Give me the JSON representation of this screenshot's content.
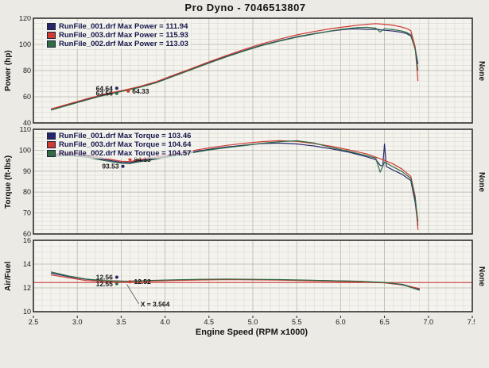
{
  "title": "Pro Dyno - 7046513807",
  "xlabel": "Engine Speed (RPM x1000)",
  "right_label": "None",
  "x_ticks": [
    "2.5",
    "3.0",
    "3.5",
    "4.0",
    "4.5",
    "5.0",
    "5.5",
    "6.0",
    "6.5",
    "7.0",
    "7.5"
  ],
  "colors": {
    "run001": "#26276b",
    "run003": "#cf3a31",
    "run002": "#2f6b45",
    "afr_target": "#cc3333"
  },
  "chart_data": [
    {
      "type": "line",
      "ylabel": "Power (hp)",
      "ylim": [
        40,
        120
      ],
      "yticks": [
        40,
        60,
        80,
        100,
        120
      ],
      "y_minor": 4,
      "xlim": [
        2.5,
        7.5
      ],
      "x_minor": 0.1,
      "x_major": 0.5,
      "legend": [
        {
          "label": "RunFile_001.drf Max Power = 111.94",
          "color": "#26276b"
        },
        {
          "label": "RunFile_003.drf Max Power = 115.93",
          "color": "#cf3a31"
        },
        {
          "label": "RunFile_002.drf Max Power = 113.03",
          "color": "#2f6b45"
        }
      ],
      "series": [
        {
          "name": "RunFile_001.drf",
          "color": "#26276b",
          "points": [
            [
              2.7,
              50.2
            ],
            [
              2.9,
              54.0
            ],
            [
              3.1,
              57.8
            ],
            [
              3.3,
              61.4
            ],
            [
              3.5,
              64.3
            ],
            [
              3.7,
              67.2
            ],
            [
              3.9,
              71.0
            ],
            [
              4.1,
              76.0
            ],
            [
              4.3,
              81.0
            ],
            [
              4.5,
              86.0
            ],
            [
              4.7,
              90.8
            ],
            [
              4.9,
              95.3
            ],
            [
              5.1,
              99.4
            ],
            [
              5.3,
              102.8
            ],
            [
              5.5,
              105.8
            ],
            [
              5.7,
              108.3
            ],
            [
              5.9,
              110.3
            ],
            [
              6.0,
              111.1
            ],
            [
              6.1,
              111.7
            ],
            [
              6.2,
              111.9
            ],
            [
              6.3,
              111.4
            ],
            [
              6.4,
              111.6
            ],
            [
              6.5,
              110.8
            ],
            [
              6.6,
              110.2
            ],
            [
              6.7,
              109.2
            ],
            [
              6.75,
              108.3
            ],
            [
              6.8,
              106.5
            ],
            [
              6.85,
              97.0
            ],
            [
              6.88,
              85.0
            ]
          ]
        },
        {
          "name": "RunFile_003.drf",
          "color": "#cf3a31",
          "points": [
            [
              2.7,
              50.6
            ],
            [
              2.9,
              54.5
            ],
            [
              3.1,
              58.3
            ],
            [
              3.3,
              61.9
            ],
            [
              3.5,
              64.6
            ],
            [
              3.7,
              67.7
            ],
            [
              3.9,
              71.6
            ],
            [
              4.1,
              76.6
            ],
            [
              4.3,
              81.6
            ],
            [
              4.5,
              86.7
            ],
            [
              4.7,
              91.6
            ],
            [
              4.9,
              96.2
            ],
            [
              5.1,
              100.4
            ],
            [
              5.3,
              104.0
            ],
            [
              5.5,
              107.3
            ],
            [
              5.7,
              109.9
            ],
            [
              5.9,
              112.1
            ],
            [
              6.0,
              113.0
            ],
            [
              6.1,
              113.9
            ],
            [
              6.2,
              114.7
            ],
            [
              6.3,
              115.4
            ],
            [
              6.4,
              115.9
            ],
            [
              6.5,
              115.4
            ],
            [
              6.6,
              114.6
            ],
            [
              6.7,
              113.2
            ],
            [
              6.75,
              112.2
            ],
            [
              6.8,
              110.5
            ],
            [
              6.85,
              98.0
            ],
            [
              6.88,
              72.0
            ]
          ]
        },
        {
          "name": "RunFile_002.drf",
          "color": "#2f6b45",
          "points": [
            [
              2.7,
              49.8
            ],
            [
              2.9,
              53.6
            ],
            [
              3.1,
              57.4
            ],
            [
              3.3,
              61.0
            ],
            [
              3.5,
              64.0
            ],
            [
              3.7,
              66.9
            ],
            [
              3.9,
              70.7
            ],
            [
              4.1,
              75.7
            ],
            [
              4.3,
              80.7
            ],
            [
              4.5,
              85.7
            ],
            [
              4.7,
              90.5
            ],
            [
              4.9,
              95.0
            ],
            [
              5.1,
              99.1
            ],
            [
              5.3,
              102.5
            ],
            [
              5.5,
              105.5
            ],
            [
              5.7,
              108.0
            ],
            [
              5.9,
              110.4
            ],
            [
              6.0,
              111.4
            ],
            [
              6.1,
              112.2
            ],
            [
              6.2,
              112.9
            ],
            [
              6.3,
              113.0
            ],
            [
              6.4,
              112.4
            ],
            [
              6.45,
              109.5
            ],
            [
              6.5,
              112.0
            ],
            [
              6.6,
              111.3
            ],
            [
              6.7,
              110.2
            ],
            [
              6.75,
              109.2
            ],
            [
              6.8,
              107.5
            ],
            [
              6.85,
              96.0
            ],
            [
              6.88,
              80.0
            ]
          ]
        }
      ],
      "annotations": [
        {
          "text": "64.64",
          "x": 3.45,
          "y": 66.5,
          "anchor": "end",
          "dot": "#26276b"
        },
        {
          "text": "63.56",
          "x": 3.45,
          "y": 62.6,
          "anchor": "end",
          "dot": "#2f6b45"
        },
        {
          "text": "64.33",
          "x": 3.58,
          "y": 64.3,
          "anchor": "start",
          "dot": "#cf3a31"
        }
      ]
    },
    {
      "type": "line",
      "ylabel": "Torque (ft-lbs)",
      "ylim": [
        60,
        110
      ],
      "yticks": [
        60,
        70,
        80,
        90,
        100,
        110
      ],
      "y_minor": 2,
      "xlim": [
        2.5,
        7.5
      ],
      "x_minor": 0.1,
      "x_major": 0.5,
      "legend": [
        {
          "label": "RunFile_001.drf Max Torque = 103.46",
          "color": "#26276b"
        },
        {
          "label": "RunFile_003.drf Max Torque = 104.64",
          "color": "#cf3a31"
        },
        {
          "label": "RunFile_002.drf Max Torque = 104.57",
          "color": "#2f6b45"
        }
      ],
      "series": [
        {
          "name": "RunFile_001.drf",
          "color": "#26276b",
          "points": [
            [
              2.7,
              97.5
            ],
            [
              2.9,
              97.9
            ],
            [
              3.1,
              97.2
            ],
            [
              3.3,
              95.6
            ],
            [
              3.5,
              94.2
            ],
            [
              3.6,
              94.1
            ],
            [
              3.7,
              94.9
            ],
            [
              3.9,
              96.2
            ],
            [
              4.1,
              97.6
            ],
            [
              4.3,
              99.1
            ],
            [
              4.5,
              100.4
            ],
            [
              4.7,
              101.5
            ],
            [
              4.9,
              102.4
            ],
            [
              5.1,
              103.2
            ],
            [
              5.3,
              103.4
            ],
            [
              5.5,
              103.0
            ],
            [
              5.7,
              102.0
            ],
            [
              5.9,
              100.6
            ],
            [
              6.1,
              99.0
            ],
            [
              6.3,
              96.8
            ],
            [
              6.4,
              95.5
            ],
            [
              6.45,
              92.8
            ],
            [
              6.48,
              92.5
            ],
            [
              6.5,
              103.0
            ],
            [
              6.52,
              92.2
            ],
            [
              6.6,
              90.5
            ],
            [
              6.7,
              88.5
            ],
            [
              6.8,
              85.5
            ],
            [
              6.85,
              75.0
            ],
            [
              6.88,
              64.0
            ]
          ]
        },
        {
          "name": "RunFile_003.drf",
          "color": "#cf3a31",
          "points": [
            [
              2.7,
              98.2
            ],
            [
              2.9,
              98.6
            ],
            [
              3.1,
              97.8
            ],
            [
              3.3,
              96.2
            ],
            [
              3.5,
              94.7
            ],
            [
              3.6,
              94.6
            ],
            [
              3.7,
              95.4
            ],
            [
              3.9,
              96.8
            ],
            [
              4.1,
              98.2
            ],
            [
              4.3,
              99.7
            ],
            [
              4.5,
              101.1
            ],
            [
              4.7,
              102.3
            ],
            [
              4.9,
              103.3
            ],
            [
              5.1,
              104.1
            ],
            [
              5.3,
              104.6
            ],
            [
              5.5,
              104.2
            ],
            [
              5.7,
              103.2
            ],
            [
              5.9,
              101.8
            ],
            [
              6.1,
              100.1
            ],
            [
              6.3,
              98.2
            ],
            [
              6.5,
              95.2
            ],
            [
              6.6,
              93.4
            ],
            [
              6.7,
              91.0
            ],
            [
              6.8,
              87.5
            ],
            [
              6.85,
              78.0
            ],
            [
              6.88,
              62.0
            ]
          ]
        },
        {
          "name": "RunFile_002.drf",
          "color": "#2f6b45",
          "points": [
            [
              2.7,
              97.0
            ],
            [
              2.9,
              97.4
            ],
            [
              3.1,
              96.7
            ],
            [
              3.3,
              95.1
            ],
            [
              3.5,
              93.8
            ],
            [
              3.6,
              93.6
            ],
            [
              3.7,
              94.4
            ],
            [
              3.9,
              95.8
            ],
            [
              4.1,
              97.2
            ],
            [
              4.3,
              98.7
            ],
            [
              4.5,
              100.1
            ],
            [
              4.7,
              101.2
            ],
            [
              4.9,
              102.2
            ],
            [
              5.1,
              103.3
            ],
            [
              5.3,
              104.1
            ],
            [
              5.5,
              104.5
            ],
            [
              5.7,
              103.4
            ],
            [
              5.9,
              101.2
            ],
            [
              6.1,
              99.4
            ],
            [
              6.3,
              97.4
            ],
            [
              6.4,
              96.2
            ],
            [
              6.45,
              89.5
            ],
            [
              6.5,
              94.3
            ],
            [
              6.6,
              92.0
            ],
            [
              6.7,
              89.8
            ],
            [
              6.8,
              86.5
            ],
            [
              6.85,
              77.0
            ],
            [
              6.88,
              66.0
            ]
          ]
        }
      ],
      "annotations": [
        {
          "text": "94.13",
          "x": 3.6,
          "y": 95.6,
          "anchor": "start",
          "dot": "#cf3a31"
        },
        {
          "text": "93.53",
          "x": 3.52,
          "y": 92.3,
          "anchor": "end",
          "dot": "#26276b"
        }
      ]
    },
    {
      "type": "line",
      "ylabel": "Air/Fuel",
      "ylim": [
        10,
        16
      ],
      "yticks": [
        10,
        12,
        14,
        16
      ],
      "y_minor": 0.5,
      "xlim": [
        2.5,
        7.5
      ],
      "x_minor": 0.1,
      "x_major": 0.5,
      "ref_line": {
        "y": 12.45,
        "color": "#cc3333"
      },
      "series": [
        {
          "name": "RunFile_001.drf",
          "color": "#26276b",
          "points": [
            [
              2.7,
              13.25
            ],
            [
              2.9,
              12.95
            ],
            [
              3.1,
              12.72
            ],
            [
              3.3,
              12.6
            ],
            [
              3.564,
              12.56
            ],
            [
              3.8,
              12.6
            ],
            [
              4.1,
              12.66
            ],
            [
              4.4,
              12.7
            ],
            [
              4.7,
              12.72
            ],
            [
              5.0,
              12.7
            ],
            [
              5.3,
              12.68
            ],
            [
              5.6,
              12.64
            ],
            [
              5.9,
              12.6
            ],
            [
              6.2,
              12.55
            ],
            [
              6.5,
              12.45
            ],
            [
              6.7,
              12.3
            ],
            [
              6.9,
              11.9
            ]
          ]
        },
        {
          "name": "RunFile_003.drf",
          "color": "#cf3a31",
          "points": [
            [
              2.7,
              13.1
            ],
            [
              2.9,
              12.85
            ],
            [
              3.1,
              12.62
            ],
            [
              3.3,
              12.55
            ],
            [
              3.564,
              12.52
            ],
            [
              3.8,
              12.56
            ],
            [
              4.1,
              12.62
            ],
            [
              4.4,
              12.67
            ],
            [
              4.7,
              12.7
            ],
            [
              5.0,
              12.68
            ],
            [
              5.3,
              12.65
            ],
            [
              5.6,
              12.6
            ],
            [
              5.9,
              12.56
            ],
            [
              6.2,
              12.5
            ],
            [
              6.5,
              12.42
            ],
            [
              6.7,
              12.25
            ],
            [
              6.9,
              11.95
            ]
          ]
        },
        {
          "name": "RunFile_002.drf",
          "color": "#2f6b45",
          "points": [
            [
              2.7,
              13.35
            ],
            [
              2.9,
              13.0
            ],
            [
              3.1,
              12.75
            ],
            [
              3.3,
              12.62
            ],
            [
              3.564,
              12.55
            ],
            [
              3.8,
              12.62
            ],
            [
              4.1,
              12.68
            ],
            [
              4.4,
              12.72
            ],
            [
              4.7,
              12.74
            ],
            [
              5.0,
              12.72
            ],
            [
              5.3,
              12.7
            ],
            [
              5.6,
              12.65
            ],
            [
              5.9,
              12.6
            ],
            [
              6.2,
              12.56
            ],
            [
              6.5,
              12.46
            ],
            [
              6.7,
              12.28
            ],
            [
              6.9,
              11.8
            ]
          ]
        }
      ],
      "annotations": [
        {
          "text": "12.56",
          "x": 3.45,
          "y": 12.9,
          "anchor": "end",
          "dot": "#26276b"
        },
        {
          "text": "12.55",
          "x": 3.45,
          "y": 12.35,
          "anchor": "end",
          "dot": "#2f6b45"
        },
        {
          "text": "12.52",
          "x": 3.6,
          "y": 12.52,
          "anchor": "start",
          "dot": "#cf3a31"
        }
      ],
      "cursor": {
        "label": "X = 3.564",
        "x": 3.564,
        "y_from": 12.3,
        "label_x": 3.72,
        "label_y": 10.45
      }
    }
  ]
}
